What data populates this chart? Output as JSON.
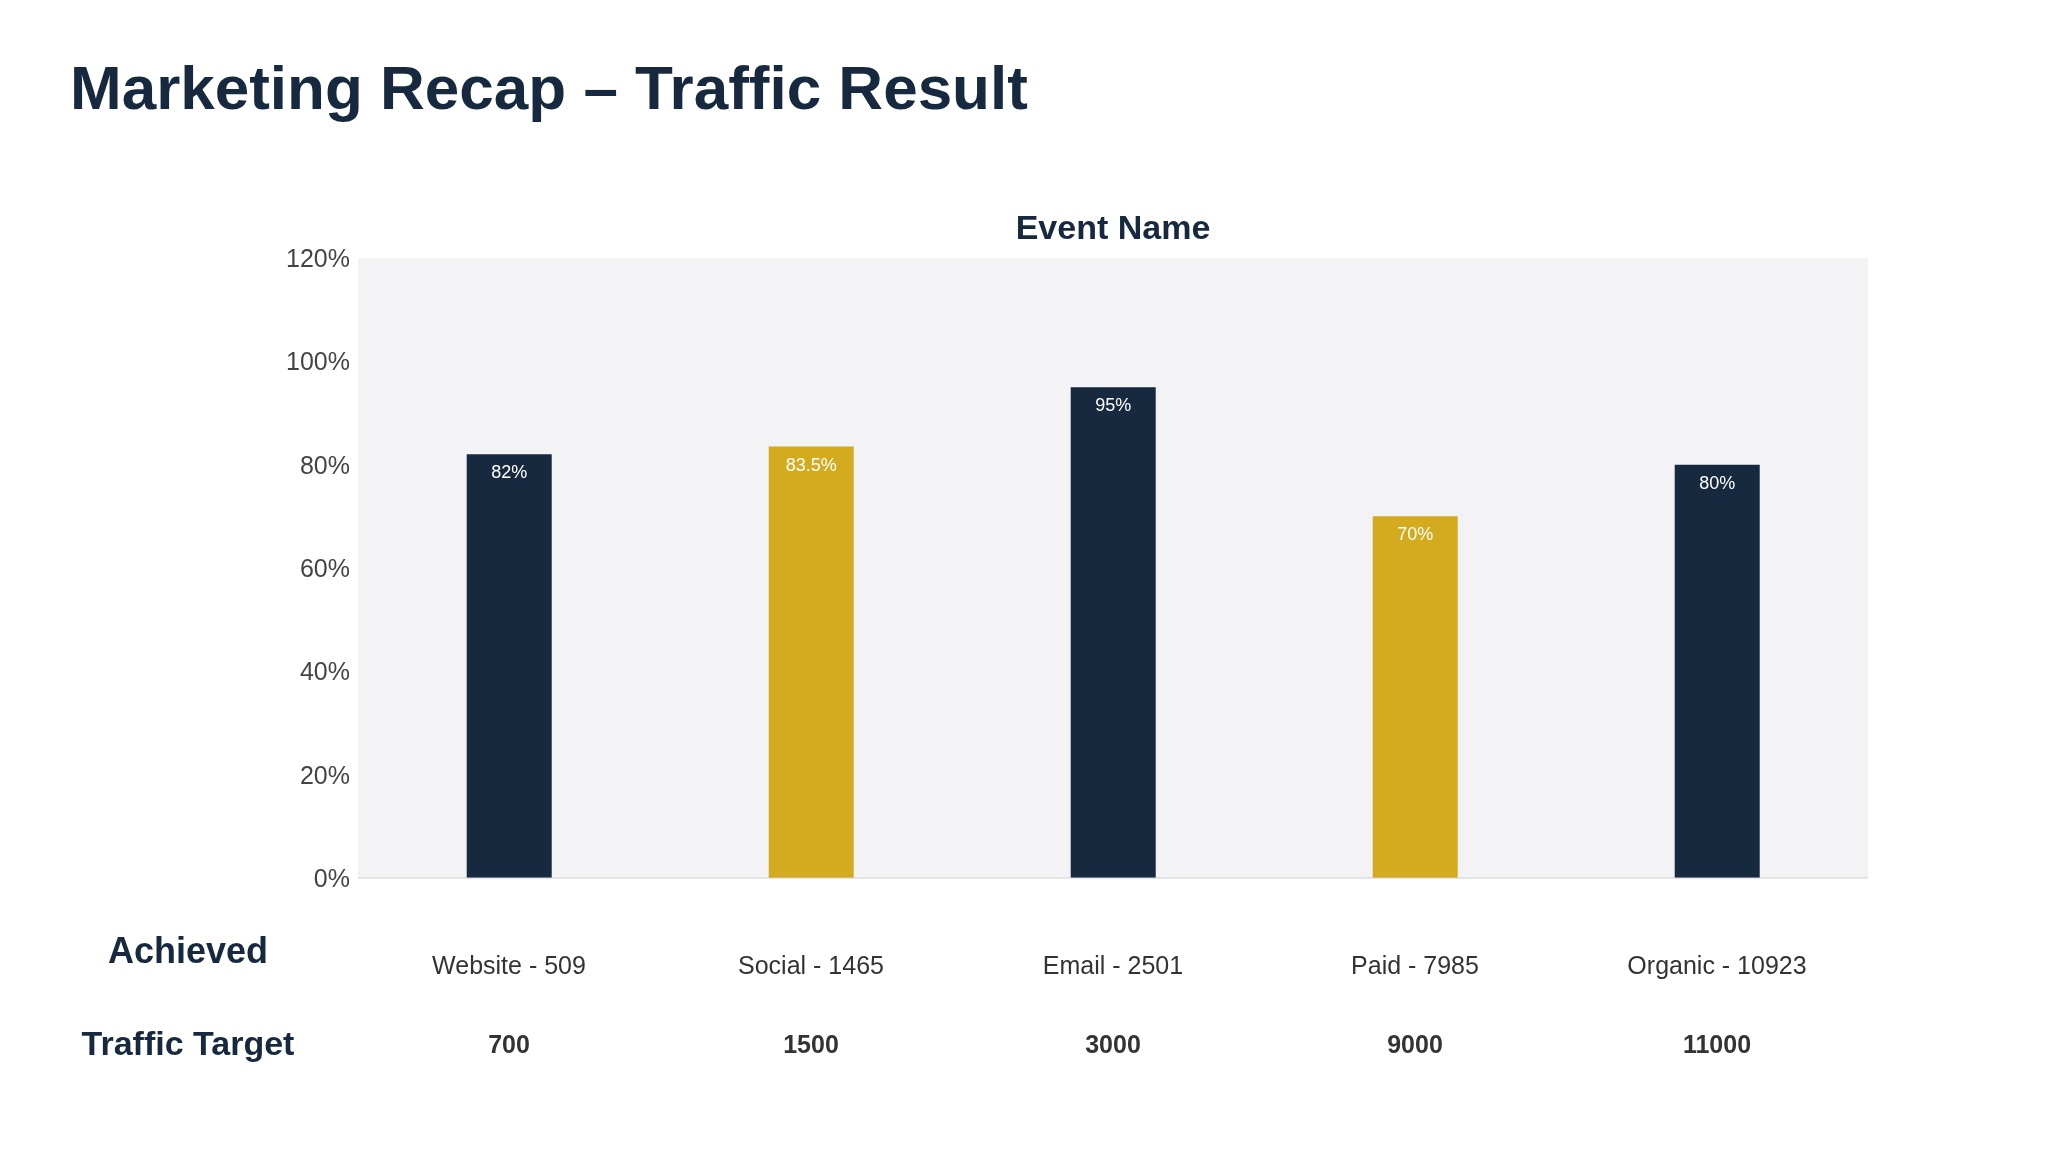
{
  "chart_data": {
    "type": "bar",
    "title": "Marketing Recap – Traffic Result",
    "subtitle": "Event Name",
    "categories": [
      "Website - 509",
      "Social - 1465",
      "Email - 2501",
      "Paid - 7985",
      "Organic - 10923"
    ],
    "values": [
      82,
      83.5,
      95,
      70,
      80
    ],
    "colors": [
      "#17293f",
      "#d4aa1e",
      "#17293f",
      "#d4aa1e",
      "#17293f"
    ],
    "value_labels": [
      "82%",
      "83.5%",
      "95%",
      "70%",
      "80%"
    ],
    "ylim": [
      0,
      120
    ],
    "yticks": [
      {
        "value": 0,
        "label": "0%"
      },
      {
        "value": 20,
        "label": "20%"
      },
      {
        "value": 40,
        "label": "40%"
      },
      {
        "value": 60,
        "label": "60%"
      },
      {
        "value": 80,
        "label": "80%"
      },
      {
        "value": 100,
        "label": "100%"
      },
      {
        "value": 120,
        "label": "120%"
      }
    ],
    "grid": false,
    "annotations": [
      "Achieved",
      "Traffic Target",
      "700",
      "1500",
      "3000",
      "9000",
      "11000"
    ]
  }
}
